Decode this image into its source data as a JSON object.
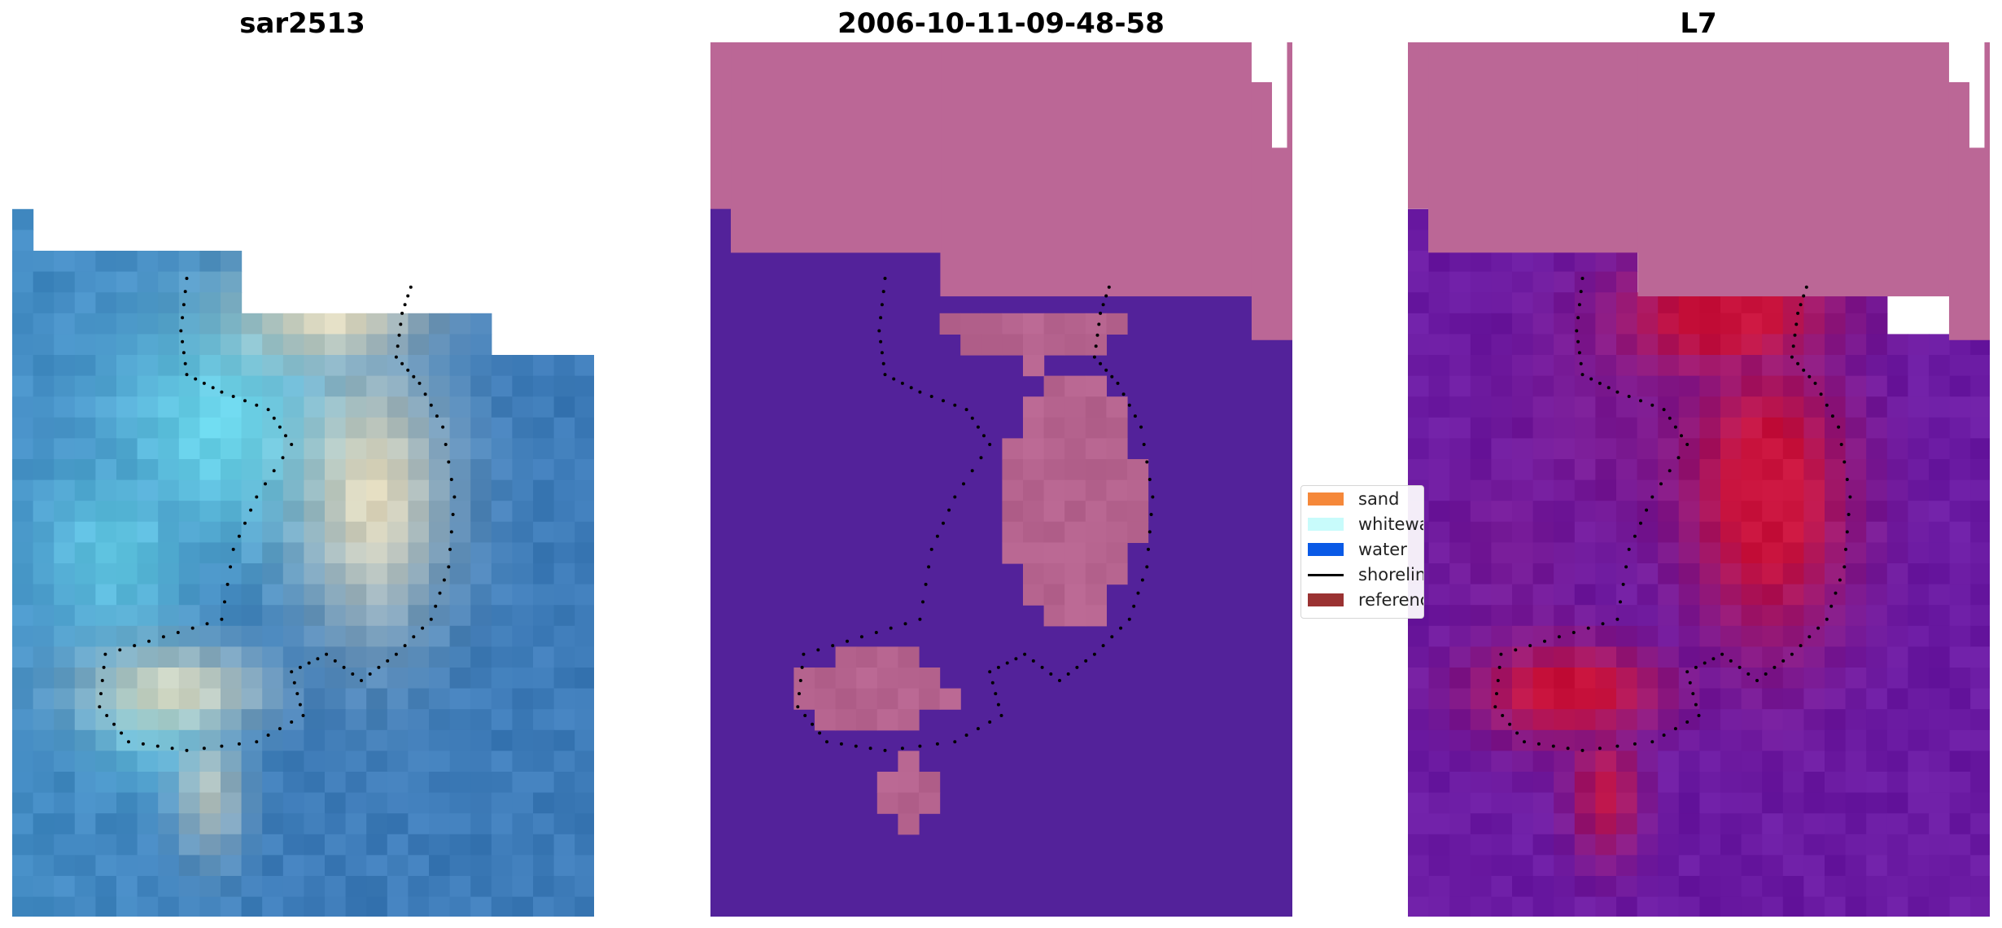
{
  "panels": [
    {
      "title": "sar2513"
    },
    {
      "title": "2006-10-11-09-48-58"
    },
    {
      "title": "L7"
    }
  ],
  "legend": {
    "items": [
      {
        "label": "sand",
        "kind": "patch",
        "color": "#f5883a"
      },
      {
        "label": "whitewater",
        "kind": "patch",
        "color": "#c8fbfb"
      },
      {
        "label": "water",
        "kind": "patch",
        "color": "#0a5ae6"
      },
      {
        "label": "shoreline",
        "kind": "line",
        "color": "#000000"
      },
      {
        "label": "reference shoreline",
        "kind": "patch",
        "color": "#9a3232"
      }
    ]
  },
  "colors": {
    "nodata_mask": "#bb6796",
    "water_class": "#53229a",
    "island_class": "#b5638e",
    "ocean": "#3d7bb8",
    "whitewater_tint": "#6fe3f2",
    "sand_tint": "#f2e2bd",
    "heat_high": "#c8123c",
    "heat_low": "#6a1aa2"
  }
}
